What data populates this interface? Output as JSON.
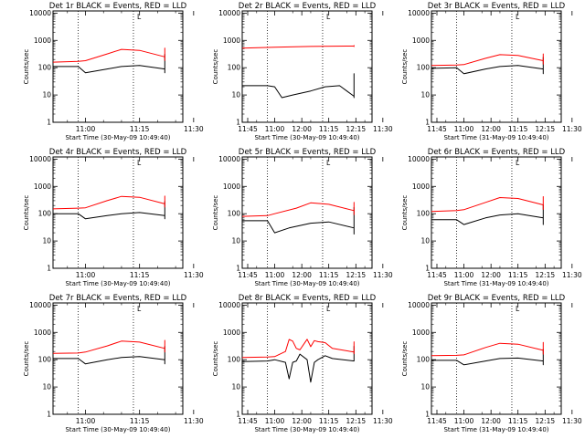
{
  "common": {
    "ylabel": "Counts/sec",
    "xlabel": "Start Time (30-May-09 10:49:40)",
    "xlabel_alt": "Start Time (31-May-09 10:49:40)",
    "xticks": [
      "11:00",
      "11:15",
      "11:30",
      "11:45",
      "12:00",
      "12:15"
    ],
    "yticks": [
      "1",
      "10",
      "100",
      "1000",
      "10000"
    ],
    "marker_label": "L",
    "colors": {
      "events": "#000000",
      "lld": "#ff0000",
      "frame": "#000000"
    }
  },
  "chart_data": [
    {
      "type": "line",
      "title": "Det 1r BLACK = Events, RED = LLD",
      "xlabel": "Start Time (30-May-09 10:49:40)",
      "ylabel": "Counts/sec",
      "y_scale": "log",
      "ylim": [
        1,
        12000
      ],
      "xlim_minutes": [
        -9,
        27
      ],
      "series": [
        {
          "name": "BLACK = Events",
          "color": "#000000",
          "x": [
            "10:50",
            "10:58",
            "11:00",
            "11:06",
            "11:10",
            "11:15",
            "11:22",
            "11:26",
            "11:28",
            "11:35",
            "11:45",
            "11:52",
            "12:00",
            "12:05",
            "12:08",
            "12:12",
            "12:16",
            "12:22"
          ],
          "y": [
            110,
            110,
            65,
            90,
            110,
            120,
            90,
            65,
            100,
            105,
            120,
            160,
            250,
            310,
            290,
            250,
            190,
            120
          ]
        },
        {
          "name": "RED = LLD",
          "color": "#ff0000",
          "x": [
            "10:50",
            "10:58",
            "11:00",
            "11:06",
            "11:10",
            "11:15",
            "11:22",
            "11:26",
            "11:28",
            "11:35",
            "11:45",
            "11:52",
            "12:00",
            "12:05",
            "12:08",
            "12:12",
            "12:16",
            "12:22"
          ],
          "y": [
            160,
            170,
            180,
            320,
            470,
            430,
            250,
            210,
            190,
            185,
            210,
            280,
            420,
            520,
            490,
            400,
            280,
            200
          ]
        }
      ]
    },
    {
      "type": "line",
      "title": "Det 2r BLACK = Events, RED = LLD",
      "xlabel": "Start Time (30-May-09 10:49:40)",
      "ylabel": "Counts/sec",
      "y_scale": "log",
      "ylim": [
        1,
        12000
      ],
      "xlim_minutes": [
        -9,
        27
      ],
      "series": [
        {
          "name": "BLACK = Events",
          "color": "#000000",
          "x": [
            "10:50",
            "10:58",
            "11:00",
            "11:02",
            "11:05",
            "11:10",
            "11:14",
            "11:18",
            "11:20",
            "11:25",
            "11:30",
            "11:32",
            "11:40",
            "11:48",
            "11:55",
            "12:03",
            "12:08",
            "12:13",
            "12:18",
            "12:22"
          ],
          "y": [
            22,
            22,
            20,
            8,
            10,
            14,
            20,
            22,
            14,
            9,
            8,
            20,
            25,
            30,
            40,
            60,
            55,
            45,
            35,
            22
          ]
        },
        {
          "name": "RED = LLD",
          "color": "#ff0000",
          "x": [
            "10:50",
            "11:00",
            "11:10",
            "11:20",
            "11:30",
            "11:40",
            "11:50",
            "12:00",
            "12:10",
            "12:22"
          ],
          "y": [
            520,
            560,
            600,
            620,
            620,
            640,
            650,
            650,
            620,
            580
          ]
        }
      ]
    },
    {
      "type": "line",
      "title": "Det 3r BLACK = Events, RED = LLD",
      "xlabel": "Start Time (31-May-09 10:49:40)",
      "ylabel": "Counts/sec",
      "y_scale": "log",
      "ylim": [
        1,
        12000
      ],
      "xlim_minutes": [
        -9,
        27
      ],
      "series": [
        {
          "name": "BLACK = Events",
          "color": "#000000",
          "x": [
            "10:50",
            "10:58",
            "11:00",
            "11:06",
            "11:10",
            "11:15",
            "11:22",
            "11:26",
            "11:28",
            "11:35",
            "11:45",
            "11:52",
            "12:00",
            "12:05",
            "12:08",
            "12:12",
            "12:16",
            "12:22"
          ],
          "y": [
            95,
            100,
            60,
            90,
            110,
            120,
            90,
            60,
            100,
            105,
            120,
            150,
            200,
            240,
            230,
            210,
            160,
            110
          ]
        },
        {
          "name": "RED = LLD",
          "color": "#ff0000",
          "x": [
            "10:50",
            "10:58",
            "11:00",
            "11:06",
            "11:10",
            "11:15",
            "11:22",
            "11:26",
            "11:28",
            "11:35",
            "11:45",
            "11:52",
            "12:00",
            "12:05",
            "12:08",
            "12:12",
            "12:16",
            "12:22"
          ],
          "y": [
            120,
            125,
            130,
            220,
            300,
            280,
            180,
            140,
            135,
            135,
            150,
            200,
            280,
            320,
            300,
            260,
            200,
            150
          ]
        }
      ]
    },
    {
      "type": "line",
      "title": "Det 4r BLACK = Events, RED = LLD",
      "xlabel": "Start Time (30-May-09 10:49:40)",
      "ylabel": "Counts/sec",
      "y_scale": "log",
      "ylim": [
        1,
        12000
      ],
      "xlim_minutes": [
        -9,
        27
      ],
      "series": [
        {
          "name": "BLACK = Events",
          "color": "#000000",
          "x": [
            "10:50",
            "10:58",
            "11:00",
            "11:06",
            "11:10",
            "11:15",
            "11:22",
            "11:26",
            "11:28",
            "11:35",
            "11:45",
            "11:52",
            "12:00",
            "12:05",
            "12:08",
            "12:12",
            "12:16",
            "12:22"
          ],
          "y": [
            100,
            100,
            65,
            85,
            100,
            110,
            85,
            65,
            95,
            100,
            115,
            150,
            230,
            280,
            270,
            240,
            180,
            120
          ]
        },
        {
          "name": "RED = LLD",
          "color": "#ff0000",
          "x": [
            "10:50",
            "10:58",
            "11:00",
            "11:06",
            "11:10",
            "11:15",
            "11:22",
            "11:26",
            "11:28",
            "11:35",
            "11:45",
            "11:52",
            "12:00",
            "12:05",
            "12:08",
            "12:12",
            "12:16",
            "12:22"
          ],
          "y": [
            150,
            160,
            165,
            300,
            430,
            400,
            230,
            190,
            175,
            175,
            200,
            270,
            380,
            440,
            420,
            360,
            260,
            180
          ]
        }
      ]
    },
    {
      "type": "line",
      "title": "Det 5r BLACK = Events, RED = LLD",
      "xlabel": "Start Time (30-May-09 10:49:40)",
      "ylabel": "Counts/sec",
      "y_scale": "log",
      "ylim": [
        1,
        12000
      ],
      "xlim_minutes": [
        -9,
        27
      ],
      "series": [
        {
          "name": "BLACK = Events",
          "color": "#000000",
          "x": [
            "10:50",
            "10:58",
            "11:00",
            "11:04",
            "11:10",
            "11:15",
            "11:22",
            "11:26",
            "11:28",
            "11:35",
            "11:45",
            "11:52",
            "12:00",
            "12:05",
            "12:08",
            "12:12",
            "12:16",
            "12:22"
          ],
          "y": [
            55,
            55,
            20,
            30,
            45,
            50,
            30,
            18,
            55,
            60,
            75,
            100,
            140,
            170,
            160,
            140,
            110,
            65
          ]
        },
        {
          "name": "RED = LLD",
          "color": "#ff0000",
          "x": [
            "10:50",
            "10:58",
            "11:00",
            "11:06",
            "11:10",
            "11:15",
            "11:22",
            "11:26",
            "11:28",
            "11:35",
            "11:45",
            "11:52",
            "12:00",
            "12:05",
            "12:08",
            "12:12",
            "12:16",
            "12:22"
          ],
          "y": [
            80,
            85,
            100,
            160,
            250,
            220,
            130,
            100,
            95,
            95,
            115,
            160,
            230,
            260,
            240,
            200,
            150,
            90
          ]
        }
      ]
    },
    {
      "type": "line",
      "title": "Det 6r BLACK = Events, RED = LLD",
      "xlabel": "Start Time (31-May-09 10:49:40)",
      "ylabel": "Counts/sec",
      "y_scale": "log",
      "ylim": [
        1,
        12000
      ],
      "xlim_minutes": [
        -9,
        27
      ],
      "series": [
        {
          "name": "BLACK = Events",
          "color": "#000000",
          "x": [
            "10:50",
            "10:58",
            "11:00",
            "11:06",
            "11:10",
            "11:15",
            "11:22",
            "11:26",
            "11:28",
            "11:35",
            "11:45",
            "11:52",
            "12:00",
            "12:05",
            "12:08",
            "12:12",
            "12:16",
            "12:22"
          ],
          "y": [
            60,
            60,
            40,
            70,
            90,
            100,
            70,
            40,
            100,
            105,
            120,
            150,
            190,
            210,
            200,
            180,
            140,
            100
          ]
        },
        {
          "name": "RED = LLD",
          "color": "#ff0000",
          "x": [
            "10:50",
            "10:58",
            "11:00",
            "11:06",
            "11:10",
            "11:15",
            "11:22",
            "11:26",
            "11:28",
            "11:35",
            "11:45",
            "11:52",
            "12:00",
            "12:05",
            "12:08",
            "12:12",
            "12:16",
            "12:22"
          ],
          "y": [
            120,
            130,
            140,
            260,
            390,
            360,
            210,
            150,
            145,
            145,
            170,
            240,
            360,
            420,
            390,
            320,
            220,
            140
          ]
        }
      ]
    },
    {
      "type": "line",
      "title": "Det 7r BLACK = Events, RED = LLD",
      "xlabel": "Start Time (30-May-09 10:49:40)",
      "ylabel": "Counts/sec",
      "y_scale": "log",
      "ylim": [
        1,
        12000
      ],
      "xlim_minutes": [
        -9,
        27
      ],
      "series": [
        {
          "name": "BLACK = Events",
          "color": "#000000",
          "x": [
            "10:50",
            "10:58",
            "11:00",
            "11:06",
            "11:10",
            "11:15",
            "11:22",
            "11:26",
            "11:28",
            "11:35",
            "11:45",
            "11:52",
            "12:00",
            "12:05",
            "12:08",
            "12:12",
            "12:16",
            "12:22"
          ],
          "y": [
            110,
            110,
            70,
            100,
            120,
            130,
            100,
            70,
            110,
            115,
            130,
            170,
            260,
            310,
            300,
            260,
            200,
            130
          ]
        },
        {
          "name": "RED = LLD",
          "color": "#ff0000",
          "x": [
            "10:50",
            "10:58",
            "11:00",
            "11:06",
            "11:10",
            "11:15",
            "11:22",
            "11:26",
            "11:28",
            "11:35",
            "11:45",
            "11:52",
            "12:00",
            "12:05",
            "12:08",
            "12:12",
            "12:16",
            "12:22"
          ],
          "y": [
            170,
            175,
            190,
            320,
            480,
            440,
            260,
            210,
            195,
            190,
            220,
            290,
            430,
            510,
            480,
            400,
            290,
            200
          ]
        }
      ]
    },
    {
      "type": "line",
      "title": "Det 8r BLACK = Events, RED = LLD",
      "xlabel": "Start Time (30-May-09 10:49:40)",
      "ylabel": "Counts/sec",
      "y_scale": "log",
      "ylim": [
        1,
        12000
      ],
      "xlim_minutes": [
        -9,
        27
      ],
      "series": [
        {
          "name": "BLACK = Events",
          "color": "#000000",
          "x": [
            "10:50",
            "10:58",
            "11:00",
            "11:03",
            "11:04",
            "11:05",
            "11:06",
            "11:07",
            "11:09",
            "11:10",
            "11:11",
            "11:12",
            "11:14",
            "11:16",
            "11:22",
            "11:30",
            "11:40",
            "11:50",
            "12:00",
            "12:06",
            "12:10",
            "12:14",
            "12:18",
            "12:22"
          ],
          "y": [
            85,
            90,
            100,
            80,
            20,
            80,
            90,
            160,
            100,
            15,
            80,
            100,
            140,
            110,
            90,
            100,
            130,
            180,
            250,
            310,
            280,
            230,
            170,
            110
          ]
        },
        {
          "name": "RED = LLD",
          "color": "#ff0000",
          "x": [
            "10:50",
            "10:58",
            "11:00",
            "11:03",
            "11:04",
            "11:05",
            "11:06",
            "11:07",
            "11:09",
            "11:10",
            "11:11",
            "11:12",
            "11:14",
            "11:16",
            "11:22",
            "11:30",
            "11:40",
            "11:50",
            "12:00",
            "12:06",
            "12:10",
            "12:14",
            "12:18",
            "12:22"
          ],
          "y": [
            120,
            125,
            130,
            200,
            550,
            480,
            260,
            230,
            560,
            300,
            500,
            460,
            420,
            260,
            190,
            180,
            210,
            280,
            380,
            450,
            420,
            350,
            250,
            160
          ]
        }
      ]
    },
    {
      "type": "line",
      "title": "Det 9r BLACK = Events, RED = LLD",
      "xlabel": "Start Time (31-May-09 10:49:40)",
      "ylabel": "Counts/sec",
      "y_scale": "log",
      "ylim": [
        1,
        12000
      ],
      "xlim_minutes": [
        -9,
        27
      ],
      "series": [
        {
          "name": "BLACK = Events",
          "color": "#000000",
          "x": [
            "10:50",
            "10:58",
            "11:00",
            "11:06",
            "11:10",
            "11:15",
            "11:22",
            "11:26",
            "11:28",
            "11:35",
            "11:45",
            "11:52",
            "12:00",
            "12:05",
            "12:08",
            "12:12",
            "12:16",
            "12:22"
          ],
          "y": [
            95,
            95,
            65,
            90,
            110,
            115,
            90,
            65,
            100,
            105,
            120,
            150,
            200,
            240,
            230,
            210,
            160,
            110
          ]
        },
        {
          "name": "RED = LLD",
          "color": "#ff0000",
          "x": [
            "10:50",
            "10:58",
            "11:00",
            "11:06",
            "11:10",
            "11:15",
            "11:22",
            "11:26",
            "11:28",
            "11:35",
            "11:45",
            "11:52",
            "12:00",
            "12:05",
            "12:08",
            "12:12",
            "12:16",
            "12:22"
          ],
          "y": [
            140,
            145,
            150,
            280,
            400,
            370,
            220,
            170,
            160,
            160,
            180,
            250,
            370,
            430,
            400,
            330,
            240,
            160
          ]
        }
      ]
    }
  ]
}
